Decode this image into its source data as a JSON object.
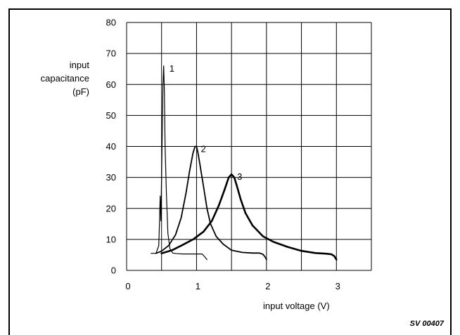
{
  "chart_data": {
    "type": "line",
    "ylabel": [
      "input",
      "capacitance",
      "(pF)"
    ],
    "xlabel": "input voltage (V)",
    "xlim": [
      0,
      3.5
    ],
    "ylim": [
      0,
      80
    ],
    "grid": true,
    "x_ticks": [
      "0",
      "1",
      "2",
      "3"
    ],
    "y_ticks": [
      "0",
      "10",
      "20",
      "30",
      "40",
      "50",
      "60",
      "70",
      "80"
    ],
    "series": [
      {
        "name": "1",
        "x": [
          0.35,
          0.42,
          0.46,
          0.47,
          0.48,
          0.49,
          0.5,
          0.51,
          0.52,
          0.53,
          0.54,
          0.55,
          0.57,
          0.59,
          0.62,
          0.66,
          0.72,
          0.8,
          0.9,
          1.0,
          1.08,
          1.12,
          1.15
        ],
        "y": [
          5.5,
          5.5,
          8,
          15,
          24,
          16,
          30,
          45,
          60,
          66,
          58,
          40,
          24,
          12,
          7,
          5.6,
          5.4,
          5.3,
          5.3,
          5.3,
          5.3,
          4.3,
          3.5
        ]
      },
      {
        "name": "2",
        "x": [
          0.42,
          0.5,
          0.6,
          0.7,
          0.78,
          0.85,
          0.9,
          0.95,
          0.98,
          1.0,
          1.02,
          1.05,
          1.1,
          1.15,
          1.2,
          1.28,
          1.38,
          1.5,
          1.65,
          1.8,
          1.9,
          1.95,
          1.98,
          2.0
        ],
        "y": [
          5.5,
          6.2,
          8,
          11.5,
          17,
          25,
          32,
          38,
          40,
          40,
          38,
          34,
          27,
          20,
          15,
          11,
          8.5,
          6.5,
          5.8,
          5.6,
          5.6,
          5.2,
          4.3,
          3.5
        ]
      },
      {
        "name": "3",
        "x": [
          0.5,
          0.65,
          0.8,
          0.95,
          1.1,
          1.22,
          1.32,
          1.4,
          1.46,
          1.5,
          1.54,
          1.58,
          1.63,
          1.7,
          1.8,
          1.95,
          2.1,
          2.3,
          2.5,
          2.7,
          2.85,
          2.93,
          2.97,
          3.0
        ],
        "y": [
          5.5,
          6.5,
          8.2,
          10,
          12.5,
          16,
          21,
          26,
          30,
          31,
          30,
          27,
          23,
          18.5,
          14.5,
          11,
          9.2,
          7.6,
          6.3,
          5.6,
          5.4,
          5.2,
          4.6,
          3.5
        ]
      }
    ]
  },
  "figure_code": "SV 00407"
}
